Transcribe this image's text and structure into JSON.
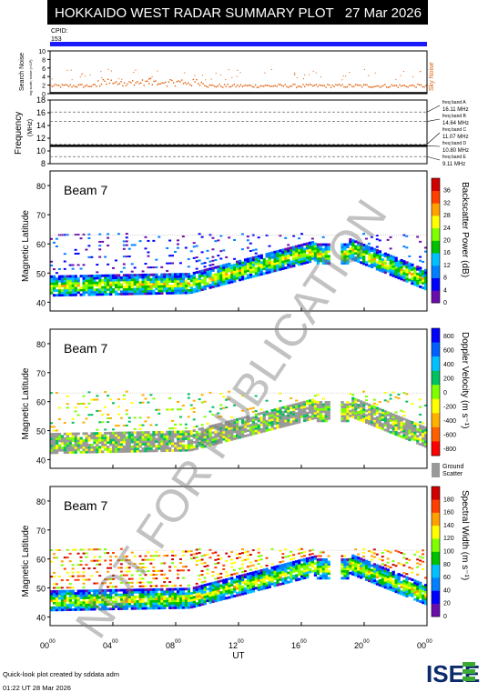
{
  "header": {
    "title": "HOKKAIDO WEST RADAR SUMMARY PLOT",
    "date": "27 Mar 2026",
    "cpid_label": "CPID:",
    "cpid_value": "153"
  },
  "colors": {
    "title_bg": "#000000",
    "cpid_bar": "#1a1aff",
    "sky_noise": "#e05a00",
    "ground_scatter": "#999999"
  },
  "footer": {
    "credit": "Quick-look plot created by sddata adm",
    "timestamp": "01:22 UT 28 Mar 2026",
    "logo": "ISEE"
  },
  "watermark": "NOT FOR PUBLICATION",
  "chart_data": [
    {
      "type": "scatter",
      "panel": "noise",
      "ylabel": "Search Noise",
      "yunit": "log scale, noise (×10³)",
      "ylim": [
        0,
        10
      ],
      "yticks": [
        "0",
        "2",
        "4",
        "6",
        "8",
        "10"
      ],
      "series": [
        {
          "name": "Sky Noise",
          "level": 1.8
        }
      ]
    },
    {
      "type": "line",
      "panel": "frequency",
      "ylabel": "Frequency",
      "yunit": "(MHz)",
      "ylim": [
        8,
        18
      ],
      "yticks": [
        "8",
        "10",
        "12",
        "14",
        "16",
        "18"
      ],
      "freq_bands": [
        {
          "label": "freq band A",
          "value_label": "16.11 MHz",
          "value": 16.11
        },
        {
          "label": "freq band B",
          "value_label": "14.64 MHz",
          "value": 14.64
        },
        {
          "label": "freq band C",
          "value_label": "11.07 MHz",
          "value": 11.07
        },
        {
          "label": "freq band D",
          "value_label": "10.80 MHz",
          "value": 10.8
        },
        {
          "label": "freq band E",
          "value_label": "9.11 MHz",
          "value": 9.11
        }
      ],
      "active_frequency": 10.8
    },
    {
      "type": "heatmap",
      "panel": "power",
      "beam_label": "Beam  7",
      "ylabel": "Magnetic Latitude",
      "ylim": [
        37,
        85
      ],
      "yticks": [
        "40",
        "50",
        "60",
        "70",
        "80"
      ],
      "colorbar_label": "Backscatter Power (dB)",
      "colorbar_ticks": [
        "0",
        "4",
        "8",
        "12",
        "16",
        "20",
        "24",
        "28",
        "32",
        "36"
      ],
      "colorbar_range": [
        0,
        36
      ],
      "colorbar_colors": [
        "#6a0dad",
        "#0000ff",
        "#0080ff",
        "#00c0ff",
        "#00c000",
        "#80ff00",
        "#ffff00",
        "#ffa000",
        "#ff4000",
        "#d00000"
      ]
    },
    {
      "type": "heatmap",
      "panel": "velocity",
      "beam_label": "Beam  7",
      "ylabel": "Magnetic Latitude",
      "ylim": [
        37,
        85
      ],
      "yticks": [
        "40",
        "50",
        "60",
        "70",
        "80"
      ],
      "colorbar_label": "Doppler Velocity (m s⁻¹)",
      "colorbar_ticks": [
        "800",
        "600",
        "400",
        "200",
        "0",
        "-200",
        "-400",
        "-600",
        "-800"
      ],
      "colorbar_range": [
        -800,
        800
      ],
      "colorbar_colors": [
        "#0000ff",
        "#0060ff",
        "#00c0ff",
        "#00c060",
        "#80ff00",
        "#ffff00",
        "#ffb000",
        "#ff6000",
        "#ff0000"
      ],
      "ground_scatter_label": "Ground Scatter"
    },
    {
      "type": "heatmap",
      "panel": "width",
      "beam_label": "Beam  7",
      "ylabel": "Magnetic Latitude",
      "ylim": [
        37,
        85
      ],
      "yticks": [
        "40",
        "50",
        "60",
        "70",
        "80"
      ],
      "colorbar_label": "Spectral Width (m s⁻¹)",
      "colorbar_ticks": [
        "0",
        "20",
        "40",
        "60",
        "80",
        "100",
        "120",
        "140",
        "160",
        "180"
      ],
      "colorbar_range": [
        0,
        180
      ],
      "colorbar_colors": [
        "#6a0dad",
        "#0000ff",
        "#0080ff",
        "#00c0ff",
        "#00c000",
        "#80ff00",
        "#ffff00",
        "#ffa000",
        "#ff4000",
        "#d00000"
      ]
    }
  ],
  "x_axis": {
    "label": "UT",
    "ticks": [
      "00",
      "04",
      "08",
      "12",
      "16",
      "20",
      "00"
    ],
    "tick_hours": [
      0,
      4,
      8,
      12,
      16,
      20,
      24
    ],
    "tick_sup": "00"
  }
}
